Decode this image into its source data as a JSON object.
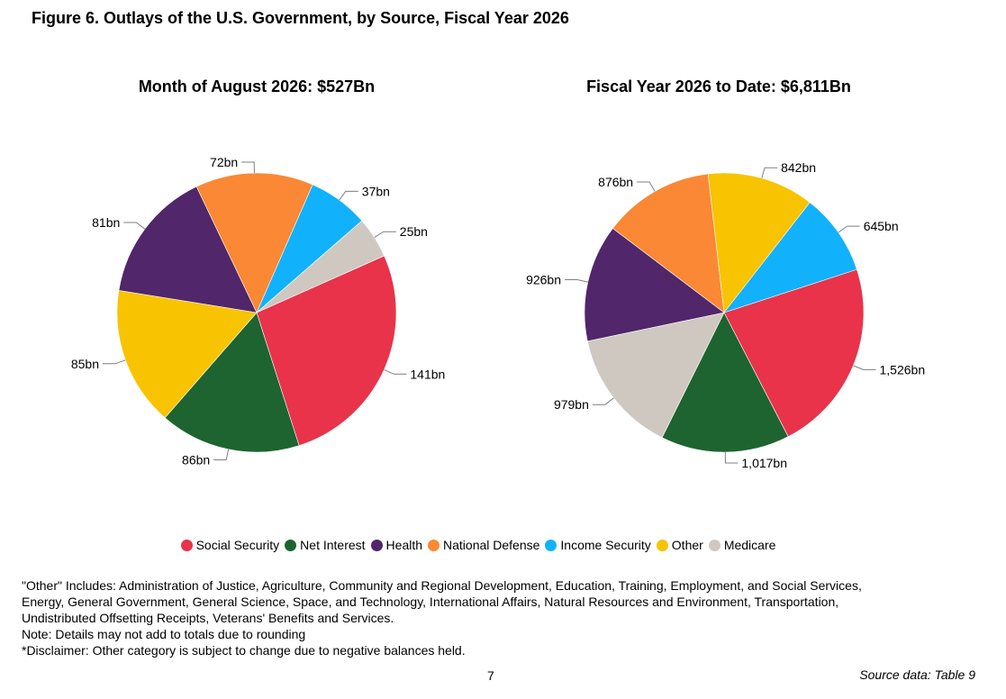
{
  "figure_title": "Figure 6. Outlays of the U.S. Government, by Source, Fiscal Year 2026",
  "colors": {
    "Social Security": "#e8334a",
    "Net Interest": "#1d6430",
    "Health": "#51266a",
    "National Defense": "#fa8835",
    "Income Security": "#12b1fb",
    "Other": "#f8c300",
    "Medicare": "#cfc8c1"
  },
  "chart_data": [
    {
      "type": "pie",
      "title": "Month of August 2026: $527Bn",
      "slices": [
        {
          "label": "Social Security",
          "value": 141,
          "data_label": "141bn"
        },
        {
          "label": "Net Interest",
          "value": 86,
          "data_label": "86bn"
        },
        {
          "label": "Other",
          "value": 85,
          "data_label": "85bn"
        },
        {
          "label": "Health",
          "value": 81,
          "data_label": "81bn"
        },
        {
          "label": "National Defense",
          "value": 72,
          "data_label": "72bn"
        },
        {
          "label": "Income Security",
          "value": 37,
          "data_label": "37bn"
        },
        {
          "label": "Medicare",
          "value": 25,
          "data_label": "25bn"
        }
      ]
    },
    {
      "type": "pie",
      "title": "Fiscal Year 2026 to Date: $6,811Bn",
      "slices": [
        {
          "label": "Social Security",
          "value": 1526,
          "data_label": "1,526bn"
        },
        {
          "label": "Net Interest",
          "value": 1017,
          "data_label": "1,017bn"
        },
        {
          "label": "Medicare",
          "value": 979,
          "data_label": "979bn"
        },
        {
          "label": "Health",
          "value": 926,
          "data_label": "926bn"
        },
        {
          "label": "National Defense",
          "value": 876,
          "data_label": "876bn"
        },
        {
          "label": "Other",
          "value": 842,
          "data_label": "842bn"
        },
        {
          "label": "Income Security",
          "value": 645,
          "data_label": "645bn"
        }
      ]
    }
  ],
  "legend": [
    "Social Security",
    "Net Interest",
    "Health",
    "National Defense",
    "Income Security",
    "Other",
    "Medicare"
  ],
  "footnotes": [
    "\"Other\" Includes: Administration of Justice, Agriculture, Community and Regional Development, Education, Training, Employment, and Social Services, Energy, General Government, General Science, Space, and Technology, International Affairs, Natural Resources and Environment, Transportation, Undistributed Offsetting Receipts, Veterans' Benefits and Services.",
    "Note: Details may not add to totals due to rounding",
    "*Disclaimer: Other category is subject to change due to negative balances held."
  ],
  "page_number": "7",
  "source": "Source data: Table 9"
}
